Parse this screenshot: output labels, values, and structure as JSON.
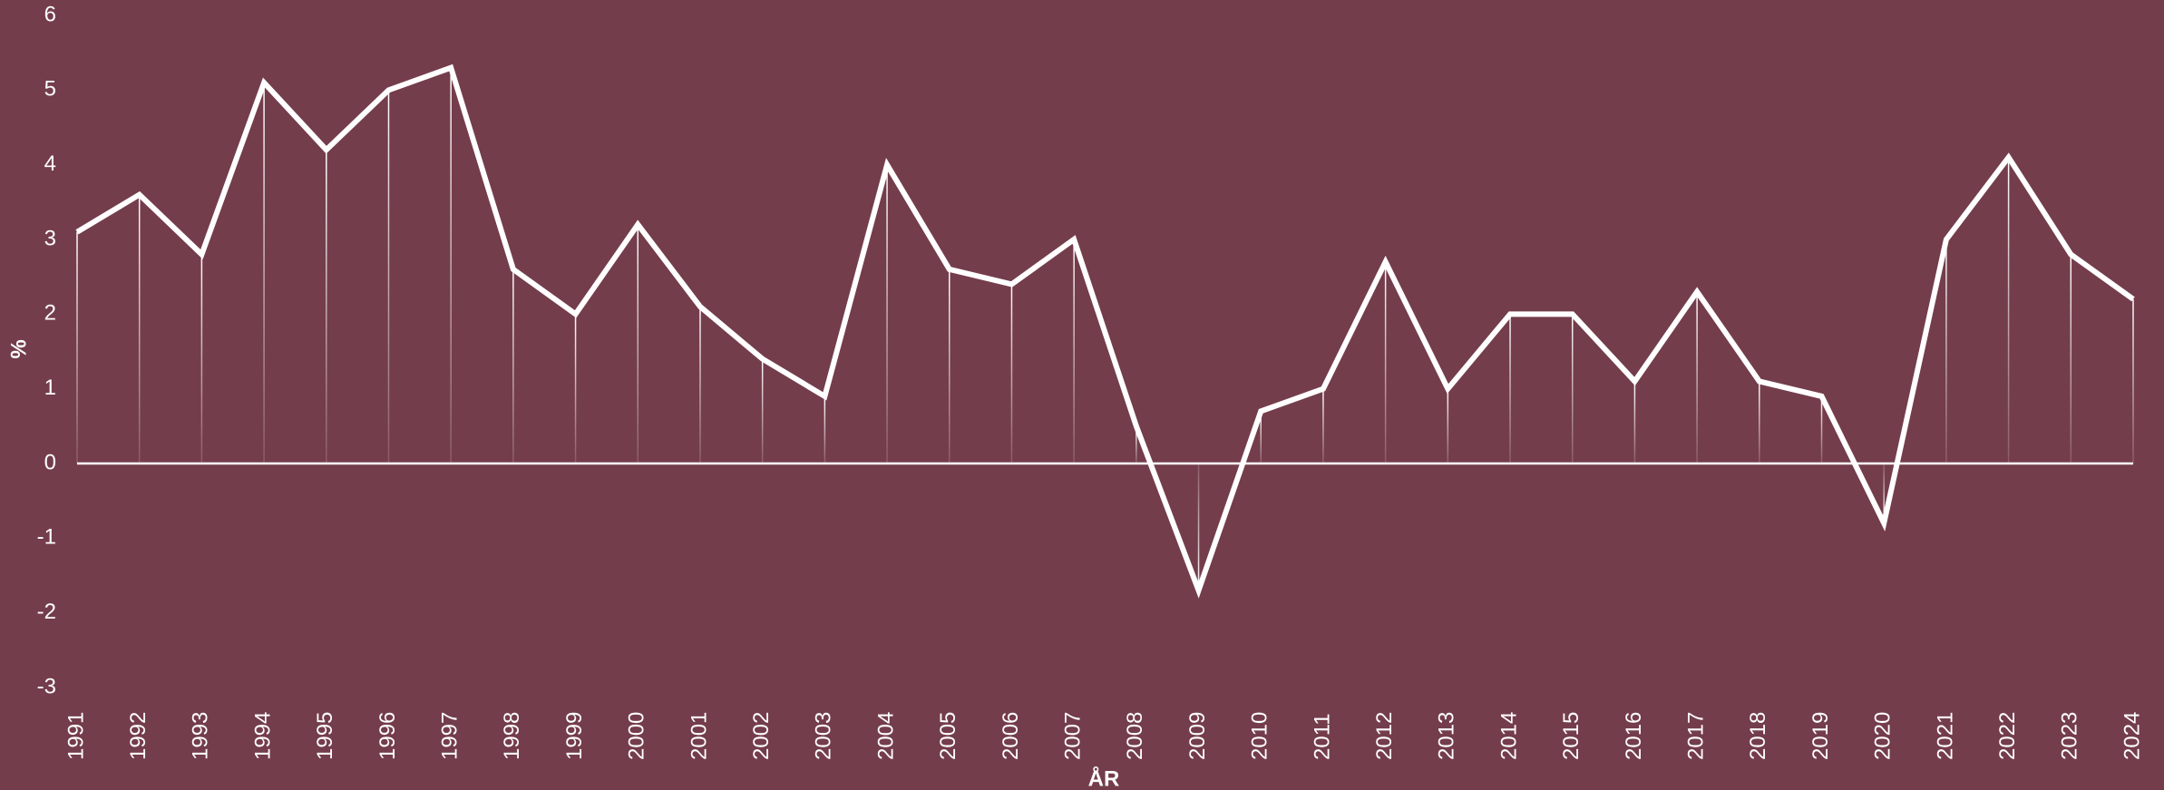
{
  "chart_data": {
    "type": "line",
    "y_label": "%",
    "x_label": "ÅR",
    "categories": [
      "1991",
      "1992",
      "1993",
      "1994",
      "1995",
      "1996",
      "1997",
      "1998",
      "1999",
      "2000",
      "2001",
      "2002",
      "2003",
      "2004",
      "2005",
      "2006",
      "2007",
      "2008",
      "2009",
      "2010",
      "2011",
      "2012",
      "2013",
      "2014",
      "2015",
      "2016",
      "2017",
      "2018",
      "2019",
      "2020",
      "2021",
      "2022",
      "2023",
      "2024"
    ],
    "values": [
      3.1,
      3.6,
      2.8,
      5.1,
      4.2,
      5.0,
      5.3,
      2.6,
      2.0,
      3.2,
      2.1,
      1.4,
      0.9,
      4.0,
      2.6,
      2.4,
      3.0,
      0.5,
      -1.7,
      0.7,
      1.0,
      2.7,
      1.0,
      2.0,
      2.0,
      1.1,
      2.3,
      1.1,
      0.9,
      -0.8,
      3.0,
      4.1,
      2.8,
      2.2
    ],
    "color": "#ffffff",
    "ylim": [
      -3,
      6
    ],
    "yticks": [
      -3,
      -2,
      -1,
      0,
      1,
      2,
      3,
      4,
      5,
      6
    ]
  }
}
